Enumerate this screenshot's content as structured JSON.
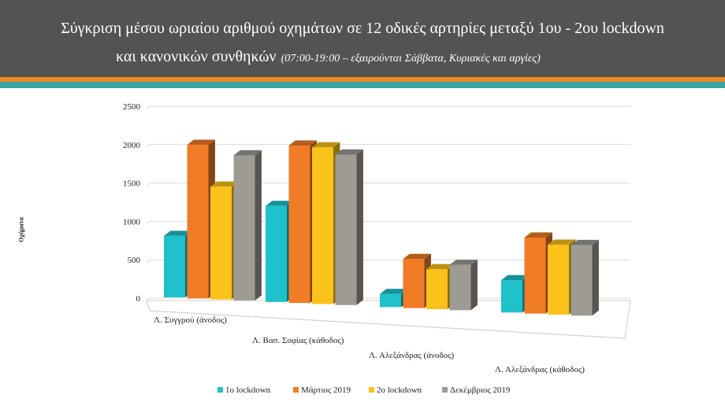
{
  "header": {
    "title_line1": "Σύγκριση μέσου ωριαίου αριθμού οχημάτων σε 12 οδικές αρτηρίες μεταξύ 1ου - 2ου lockdown",
    "title_line2": "και κανονικών συνθηκών",
    "title_note": "(07:00-19:00 – εξαιρούνται Σάββατα, Κυριακές και αργίες)"
  },
  "chart_data": {
    "type": "bar",
    "title": "Σύγκριση μέσου ωριαίου αριθμού οχημάτων σε 12 οδικές αρτηρίες μεταξύ 1ου - 2ου lockdown και κανονικών συνθηκών",
    "ylabel": "Οχήματα",
    "xlabel": "",
    "ylim": [
      0,
      2500
    ],
    "yticks": [
      0,
      500,
      1000,
      1500,
      2000,
      2500
    ],
    "grid": true,
    "legend_position": "bottom",
    "categories": [
      "Λ. Συγγρού (άνοδος)",
      "Λ. Βασ. Σοφίας (κάθοδος)",
      "Λ. Αλεξάνδρας (άνοδος)",
      "Λ. Αλεξάνδρας (κάθοδος)"
    ],
    "series": [
      {
        "name": "1ο lockdown",
        "color": "#1fc1ca",
        "values": [
          800,
          1250,
          170,
          420
        ]
      },
      {
        "name": "Μάρτιος 2019",
        "color": "#f07c25",
        "values": [
          2000,
          2050,
          640,
          990
        ]
      },
      {
        "name": "2ο lockdown",
        "color": "#fac21a",
        "values": [
          1470,
          2040,
          520,
          910
        ]
      },
      {
        "name": "Δεκέμβριος 2019",
        "color": "#9d9b94",
        "values": [
          1890,
          1960,
          590,
          920
        ]
      }
    ]
  }
}
